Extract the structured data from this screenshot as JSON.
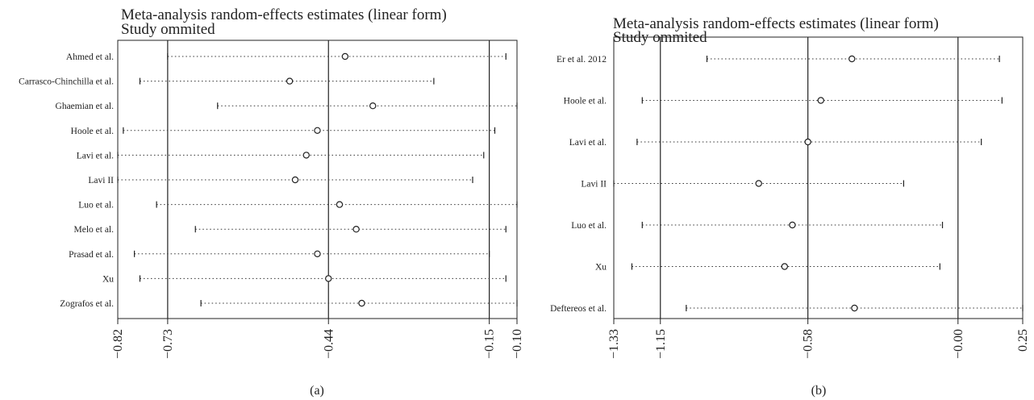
{
  "chart_data": [
    {
      "type": "scatter",
      "panel_label": "(a)",
      "title": "Meta-analysis random-effects estimates (linear form)",
      "subtitle": "Study ommited",
      "xlabel": "",
      "ylabel": "",
      "xlim": [
        -0.82,
        -0.1
      ],
      "ticks": [
        -0.82,
        -0.73,
        -0.44,
        -0.15,
        -0.1
      ],
      "tick_labels": [
        "−0.82",
        "−0.73",
        "−0.44",
        "−0.15",
        "−0.10"
      ],
      "reference_lines": [
        -0.73,
        -0.44,
        -0.15
      ],
      "grid": false,
      "studies": [
        {
          "label": "Ahmed et al.",
          "estimate": -0.41,
          "lower": -0.73,
          "upper": -0.12
        },
        {
          "label": "Carrasco-Chinchilla et al.",
          "estimate": -0.51,
          "lower": -0.78,
          "upper": -0.25
        },
        {
          "label": "Ghaemian et al.",
          "estimate": -0.36,
          "lower": -0.64,
          "upper": -0.1
        },
        {
          "label": "Hoole et al.",
          "estimate": -0.46,
          "lower": -0.81,
          "upper": -0.14
        },
        {
          "label": "Lavi et al.",
          "estimate": -0.48,
          "lower": -0.82,
          "upper": -0.16
        },
        {
          "label": "Lavi II",
          "estimate": -0.5,
          "lower": -0.82,
          "upper": -0.18
        },
        {
          "label": "Luo et al.",
          "estimate": -0.42,
          "lower": -0.75,
          "upper": -0.1
        },
        {
          "label": "Melo et al.",
          "estimate": -0.39,
          "lower": -0.68,
          "upper": -0.12
        },
        {
          "label": "Prasad et al.",
          "estimate": -0.46,
          "lower": -0.79,
          "upper": -0.15
        },
        {
          "label": "Xu",
          "estimate": -0.44,
          "lower": -0.78,
          "upper": -0.12
        },
        {
          "label": "Zografos et al.",
          "estimate": -0.38,
          "lower": -0.67,
          "upper": -0.1
        }
      ]
    },
    {
      "type": "scatter",
      "panel_label": "(b)",
      "title": "Meta-analysis random-effects estimates (linear form)",
      "subtitle": "Study ommited",
      "xlabel": "",
      "ylabel": "",
      "xlim": [
        -1.33,
        0.25
      ],
      "ticks": [
        -1.33,
        -1.15,
        -0.58,
        -0.0,
        0.25
      ],
      "tick_labels": [
        "−1.33",
        "−1.15",
        "−0.58",
        "−0.00",
        "0.25"
      ],
      "reference_lines": [
        -1.15,
        -0.58,
        0.0
      ],
      "grid": false,
      "studies": [
        {
          "label": "Er et al. 2012",
          "estimate": -0.41,
          "lower": -0.97,
          "upper": 0.16
        },
        {
          "label": "Hoole et al.",
          "estimate": -0.53,
          "lower": -1.22,
          "upper": 0.17
        },
        {
          "label": "Lavi et al.",
          "estimate": -0.58,
          "lower": -1.24,
          "upper": 0.09
        },
        {
          "label": "Lavi II",
          "estimate": -0.77,
          "lower": -1.33,
          "upper": -0.21
        },
        {
          "label": "Luo et al.",
          "estimate": -0.64,
          "lower": -1.22,
          "upper": -0.06
        },
        {
          "label": "Xu",
          "estimate": -0.67,
          "lower": -1.26,
          "upper": -0.07
        },
        {
          "label": "Deftereos et al.",
          "estimate": -0.4,
          "lower": -1.05,
          "upper": 0.25
        }
      ]
    }
  ]
}
